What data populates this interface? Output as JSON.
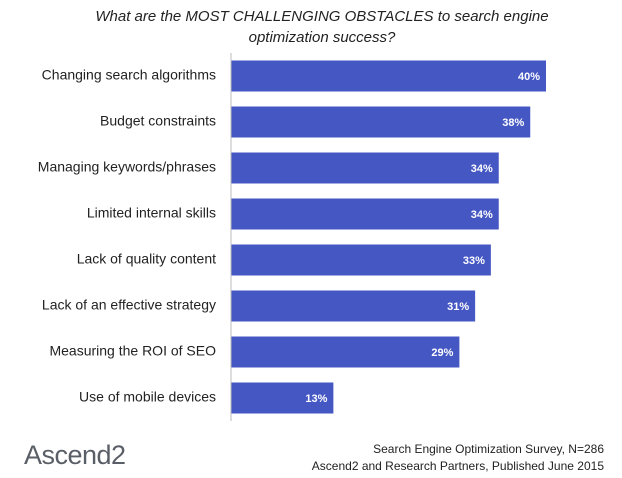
{
  "chart_data": {
    "type": "bar",
    "orientation": "horizontal",
    "title": "What are the MOST CHALLENGING OBSTACLES to search engine optimization success?",
    "categories": [
      "Changing search algorithms",
      "Budget constraints",
      "Managing keywords/phrases",
      "Limited internal skills",
      "Lack of quality content",
      "Lack of an effective strategy",
      "Measuring the ROI of SEO",
      "Use of mobile devices"
    ],
    "values": [
      40,
      38,
      34,
      34,
      33,
      31,
      29,
      13
    ],
    "value_labels": [
      "40%",
      "38%",
      "34%",
      "34%",
      "33%",
      "31%",
      "29%",
      "13%"
    ],
    "color": "#4557c3",
    "source": [
      "Search Engine Optimization Survey, N=286",
      "Ascend2 and Research Partners, Published June 2015"
    ],
    "logo": "Ascend2"
  }
}
